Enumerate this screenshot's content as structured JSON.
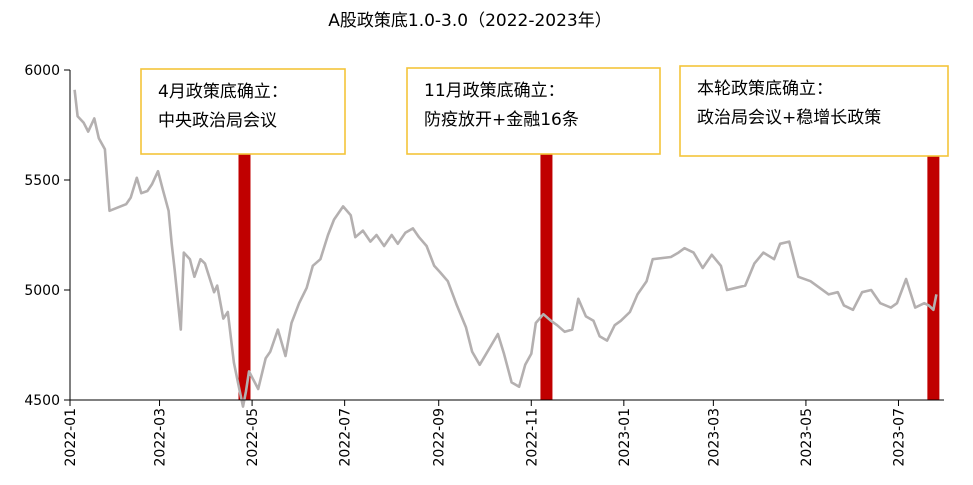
{
  "chart_data": {
    "type": "line",
    "title": "A股政策底1.0-3.0（2022-2023年）",
    "xlabel": "",
    "ylabel": "",
    "ylim": [
      4500,
      6000
    ],
    "yticks": [
      4500,
      5000,
      5500,
      6000
    ],
    "xlim": [
      "2022-01-01",
      "2023-07-31"
    ],
    "xticks": [
      "2022-01",
      "2022-03",
      "2022-05",
      "2022-07",
      "2022-09",
      "2022-11",
      "2023-01",
      "2023-03",
      "2023-05",
      "2023-07"
    ],
    "grid": false,
    "legend": "none",
    "colors": {
      "line": "#b4b0b0",
      "marker_bar": "#c00000",
      "box_border": "#f3c43a"
    },
    "series": [
      {
        "x": [
          "2022-01-04",
          "2022-01-06",
          "2022-01-10",
          "2022-01-13",
          "2022-01-17",
          "2022-01-20",
          "2022-01-24",
          "2022-01-27",
          "2022-02-07",
          "2022-02-10",
          "2022-02-14",
          "2022-02-17",
          "2022-02-21",
          "2022-02-24",
          "2022-02-28",
          "2022-03-03",
          "2022-03-07",
          "2022-03-09",
          "2022-03-11",
          "2022-03-15",
          "2022-03-17",
          "2022-03-21",
          "2022-03-24",
          "2022-03-28",
          "2022-03-31",
          "2022-04-06",
          "2022-04-08",
          "2022-04-12",
          "2022-04-15",
          "2022-04-19",
          "2022-04-22",
          "2022-04-25",
          "2022-04-27",
          "2022-04-29",
          "2022-05-05",
          "2022-05-10",
          "2022-05-13",
          "2022-05-18",
          "2022-05-23",
          "2022-05-27",
          "2022-06-01",
          "2022-06-06",
          "2022-06-10",
          "2022-06-15",
          "2022-06-20",
          "2022-06-24",
          "2022-06-30",
          "2022-07-05",
          "2022-07-08",
          "2022-07-13",
          "2022-07-18",
          "2022-07-22",
          "2022-07-27",
          "2022-08-01",
          "2022-08-05",
          "2022-08-10",
          "2022-08-15",
          "2022-08-19",
          "2022-08-24",
          "2022-08-29",
          "2022-09-02",
          "2022-09-07",
          "2022-09-13",
          "2022-09-19",
          "2022-09-23",
          "2022-09-28",
          "2022-10-10",
          "2022-10-14",
          "2022-10-19",
          "2022-10-24",
          "2022-10-28",
          "2022-11-01",
          "2022-11-04",
          "2022-11-09",
          "2022-11-14",
          "2022-11-18",
          "2022-11-23",
          "2022-11-28",
          "2022-12-02",
          "2022-12-07",
          "2022-12-12",
          "2022-12-16",
          "2022-12-21",
          "2022-12-26",
          "2022-12-30",
          "2023-01-05",
          "2023-01-10",
          "2023-01-16",
          "2023-01-20",
          "2023-02-01",
          "2023-02-06",
          "2023-02-10",
          "2023-02-16",
          "2023-02-22",
          "2023-02-28",
          "2023-03-06",
          "2023-03-10",
          "2023-03-16",
          "2023-03-22",
          "2023-03-28",
          "2023-04-03",
          "2023-04-10",
          "2023-04-14",
          "2023-04-20",
          "2023-04-26",
          "2023-05-04",
          "2023-05-10",
          "2023-05-16",
          "2023-05-22",
          "2023-05-26",
          "2023-06-01",
          "2023-06-07",
          "2023-06-13",
          "2023-06-19",
          "2023-06-26",
          "2023-06-30",
          "2023-07-06",
          "2023-07-12",
          "2023-07-18",
          "2023-07-21",
          "2023-07-24",
          "2023-07-26"
        ],
        "values": [
          5910,
          5790,
          5760,
          5720,
          5780,
          5690,
          5640,
          5360,
          5390,
          5420,
          5510,
          5440,
          5450,
          5480,
          5540,
          5460,
          5360,
          5210,
          5090,
          4820,
          5170,
          5140,
          5060,
          5140,
          5120,
          4990,
          5020,
          4870,
          4900,
          4670,
          4570,
          4470,
          4540,
          4630,
          4550,
          4690,
          4720,
          4820,
          4700,
          4850,
          4940,
          5010,
          5110,
          5140,
          5250,
          5320,
          5380,
          5340,
          5240,
          5270,
          5220,
          5250,
          5200,
          5250,
          5210,
          5260,
          5280,
          5240,
          5200,
          5110,
          5080,
          5040,
          4930,
          4830,
          4720,
          4660,
          4800,
          4710,
          4580,
          4560,
          4660,
          4710,
          4850,
          4890,
          4860,
          4840,
          4810,
          4820,
          4960,
          4880,
          4860,
          4790,
          4770,
          4840,
          4860,
          4900,
          4980,
          5040,
          5140,
          5150,
          5170,
          5190,
          5170,
          5100,
          5160,
          5110,
          5000,
          5010,
          5020,
          5120,
          5170,
          5140,
          5210,
          5220,
          5060,
          5040,
          5010,
          4980,
          4990,
          4930,
          4910,
          4990,
          5000,
          4940,
          4920,
          4940,
          5050,
          4920,
          4940,
          4930,
          4910,
          4980
        ]
      }
    ],
    "policy_bottoms": [
      {
        "date": "2022-04-26",
        "label_line1": "4月政策底确立：",
        "label_line2": "中央政治局会议"
      },
      {
        "date": "2022-11-11",
        "label_line1": "11月政策底确立：",
        "label_line2": "防疫放开+金融16条"
      },
      {
        "date": "2023-07-24",
        "label_line1": "本轮政策底确立：",
        "label_line2": "政治局会议+稳增长政策"
      }
    ]
  }
}
